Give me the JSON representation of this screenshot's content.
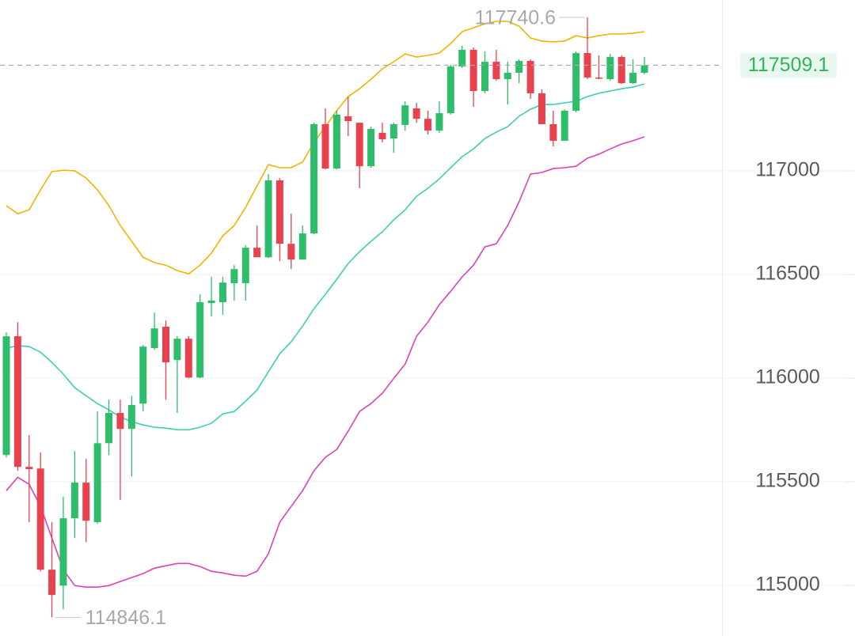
{
  "chart_data": {
    "type": "candlestick",
    "ylim": [
      114756,
      117824
    ],
    "yticks": [
      115000,
      115500,
      116000,
      116500,
      117000
    ],
    "grid": true,
    "up_color": "#2ebd6b",
    "down_color": "#e8424f",
    "open": [
      115629,
      116202,
      115572,
      115564,
      115076,
      114999,
      115324,
      115496,
      115305,
      115686,
      115832,
      115755,
      115877,
      116145,
      116248,
      116087,
      116190,
      116003,
      116362,
      116366,
      116458,
      116458,
      116629,
      116583,
      116954,
      116648,
      116572,
      116698,
      117225,
      117011,
      117263,
      117232,
      117022,
      117183,
      117156,
      117221,
      117301,
      117251,
      117194,
      117278,
      117503,
      117584,
      117385,
      117526,
      117442,
      117473,
      117530,
      117374,
      117225,
      117145,
      117290,
      117568,
      117450,
      117442,
      117549,
      117423,
      117473
    ],
    "high": [
      116221,
      116270,
      115725,
      115641,
      115305,
      115427,
      115648,
      115610,
      115839,
      115896,
      115896,
      115915,
      116160,
      116316,
      116278,
      116202,
      116202,
      116404,
      116488,
      116488,
      116545,
      116641,
      116736,
      116984,
      116965,
      116793,
      116736,
      117232,
      117301,
      117290,
      117358,
      117232,
      117213,
      117232,
      117232,
      117335,
      117328,
      117290,
      117335,
      117511,
      117603,
      117595,
      117576,
      117584,
      117526,
      117538,
      117538,
      117393,
      117290,
      117297,
      117576,
      117740.6,
      117557,
      117564,
      117557,
      117538,
      117549
    ],
    "low": [
      115618,
      115553,
      115305,
      115068,
      114846.1,
      114885,
      115228,
      115209,
      115297,
      115629,
      115412,
      115526,
      115839,
      116137,
      115896,
      115832,
      115999,
      115999,
      116297,
      116305,
      116374,
      116374,
      116583,
      116580,
      116564,
      116526,
      116572,
      116694,
      117007,
      117007,
      117167,
      116916,
      117015,
      117137,
      117087,
      117194,
      117232,
      117175,
      117183,
      117271,
      117496,
      117309,
      117374,
      117435,
      117320,
      117423,
      117347,
      117225,
      117118,
      117145,
      117282,
      117442,
      117442,
      117435,
      117419,
      117419,
      117465
    ],
    "close": [
      116202,
      115572,
      115561,
      115076,
      114954,
      115324,
      115496,
      115312,
      115686,
      115832,
      115755,
      115870,
      116152,
      116240,
      116076,
      116190,
      116003,
      116366,
      116374,
      116461,
      116526,
      116629,
      116583,
      116954,
      116648,
      116572,
      116698,
      117225,
      117011,
      117271,
      117240,
      117022,
      117202,
      117152,
      117225,
      117316,
      117251,
      117194,
      117278,
      117503,
      117584,
      117385,
      117526,
      117442,
      117473,
      117530,
      117374,
      117225,
      117145,
      117290,
      117568,
      117450,
      117446,
      117549,
      117423,
      117473,
      117509.1
    ],
    "bands": [
      {
        "color": "#f0b400",
        "values": [
          116832,
          116793,
          116812,
          116908,
          116996,
          117003,
          117000,
          116965,
          116908,
          116832,
          116736,
          116660,
          116583,
          116557,
          116545,
          116519,
          116503,
          116545,
          116603,
          116687,
          116736,
          116824,
          116927,
          117030,
          117015,
          117015,
          117042,
          117137,
          117213,
          117290,
          117358,
          117396,
          117442,
          117492,
          117526,
          117564,
          117549,
          117557,
          117568,
          117614,
          117671,
          117690,
          117709,
          117721,
          117721,
          117698,
          117641,
          117626,
          117622,
          117626,
          117652,
          117641,
          117652,
          117660,
          117660,
          117664,
          117671
        ]
      },
      {
        "color": "#3ccfb0",
        "values": [
          116145,
          116156,
          116152,
          116125,
          116076,
          116019,
          115954,
          115915,
          115877,
          115847,
          115812,
          115790,
          115774,
          115763,
          115759,
          115751,
          115751,
          115763,
          115782,
          115828,
          115839,
          115889,
          115942,
          116030,
          116118,
          116175,
          116251,
          116335,
          116404,
          116477,
          116553,
          116610,
          116660,
          116706,
          116763,
          116812,
          116877,
          116916,
          116961,
          117015,
          117068,
          117106,
          117156,
          117187,
          117213,
          117263,
          117297,
          117320,
          117320,
          117328,
          117335,
          117358,
          117374,
          117385,
          117396,
          117404,
          117419
        ]
      },
      {
        "color": "#e040b8",
        "values": [
          115457,
          115522,
          115488,
          115381,
          115228,
          115076,
          114999,
          114992,
          114992,
          114999,
          115019,
          115038,
          115057,
          115083,
          115095,
          115106,
          115106,
          115091,
          115068,
          115060,
          115049,
          115045,
          115068,
          115152,
          115305,
          115381,
          115457,
          115553,
          115618,
          115656,
          115744,
          115839,
          115877,
          115927,
          115999,
          116068,
          116202,
          116270,
          116354,
          116419,
          116488,
          116545,
          116633,
          116648,
          116736,
          116851,
          116984,
          116992,
          117011,
          117015,
          117022,
          117061,
          117080,
          117106,
          117129,
          117145,
          117164
        ]
      }
    ]
  }
}
